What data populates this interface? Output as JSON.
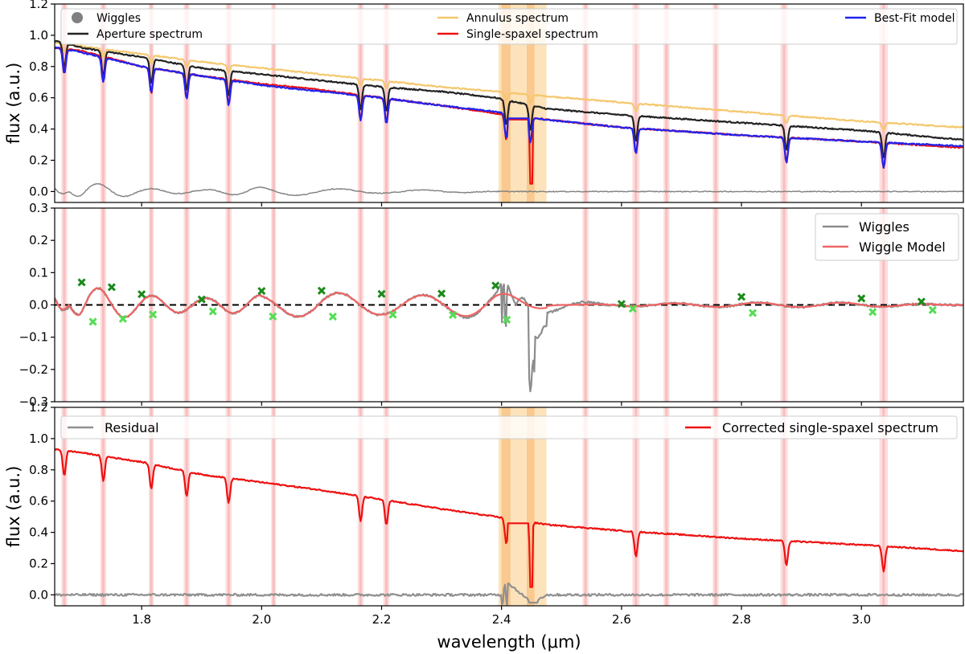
{
  "chart_data": {
    "type": "line",
    "shared_x": {
      "label": "wavelength (μm)",
      "xlim": [
        1.655,
        3.17
      ],
      "ticks": [
        1.8,
        2.0,
        2.2,
        2.4,
        2.6,
        2.8,
        3.0
      ],
      "tick_labels": [
        "1.8",
        "2.0",
        "2.2",
        "2.4",
        "2.6",
        "2.8",
        "3.0"
      ]
    },
    "masked_regions": [
      [
        1.666,
        1.676
      ],
      [
        1.731,
        1.741
      ],
      [
        1.812,
        1.82
      ],
      [
        1.87,
        1.88
      ],
      [
        1.94,
        1.95
      ],
      [
        2.016,
        2.024
      ],
      [
        2.16,
        2.17
      ],
      [
        2.203,
        2.213
      ],
      [
        2.535,
        2.545
      ],
      [
        2.618,
        2.63
      ],
      [
        2.67,
        2.68
      ],
      [
        2.752,
        2.762
      ],
      [
        2.865,
        2.877
      ],
      [
        3.03,
        3.044
      ]
    ],
    "gap_region": [
      2.395,
      2.475
    ],
    "absorption_lines": [
      1.671,
      1.736,
      1.816,
      1.875,
      1.945,
      2.165,
      2.208,
      2.408,
      2.448,
      2.624,
      2.875,
      3.037
    ],
    "panels": [
      {
        "id": "top",
        "ylabel": "flux (a.u.)",
        "ylim": [
          -0.07,
          1.2
        ],
        "yticks": [
          0.0,
          0.2,
          0.4,
          0.6,
          0.8,
          1.0,
          1.2
        ],
        "ytick_labels": [
          "0.0",
          "0.2",
          "0.4",
          "0.6",
          "0.8",
          "1.0",
          "1.2"
        ],
        "legend": [
          {
            "label": "Wiggles",
            "color": "#808080",
            "style": "marker"
          },
          {
            "label": "Aperture spectrum",
            "color": "#222222",
            "style": "line"
          },
          {
            "label": "Annulus spectrum",
            "color": "#f5c86e",
            "style": "line"
          },
          {
            "label": "Single-spaxel spectrum",
            "color": "#ee1111",
            "style": "line"
          },
          {
            "label": "Best-Fit model",
            "color": "#2222ee",
            "style": "line"
          }
        ],
        "series": [
          {
            "name": "Annulus spectrum",
            "color": "#f5c86e",
            "x": [
              1.66,
              1.7,
              1.8,
              1.9,
              2.0,
              2.1,
              2.2,
              2.3,
              2.39,
              2.475,
              2.6,
              2.8,
              3.0,
              3.17
            ],
            "y": [
              0.95,
              0.93,
              0.88,
              0.83,
              0.79,
              0.75,
              0.71,
              0.67,
              0.64,
              0.61,
              0.57,
              0.51,
              0.45,
              0.41
            ]
          },
          {
            "name": "Aperture spectrum",
            "color": "#222222",
            "x": [
              1.66,
              1.7,
              1.8,
              1.9,
              2.0,
              2.1,
              2.2,
              2.3,
              2.39,
              2.475,
              2.6,
              2.8,
              3.0,
              3.17
            ],
            "y": [
              0.96,
              0.92,
              0.86,
              0.79,
              0.75,
              0.71,
              0.67,
              0.64,
              0.6,
              0.53,
              0.49,
              0.44,
              0.39,
              0.33
            ]
          },
          {
            "name": "Single-spaxel spectrum",
            "color": "#ee1111",
            "x": [
              1.66,
              1.7,
              1.8,
              1.9,
              2.0,
              2.1,
              2.2,
              2.3,
              2.39,
              2.475,
              2.6,
              2.8,
              3.0,
              3.17
            ],
            "y": [
              0.92,
              0.9,
              0.8,
              0.74,
              0.69,
              0.65,
              0.6,
              0.55,
              0.5,
              0.46,
              0.41,
              0.36,
              0.32,
              0.28
            ]
          },
          {
            "name": "Best-Fit model",
            "color": "#2222ee",
            "x": [
              1.66,
              1.7,
              1.8,
              1.9,
              2.0,
              2.1,
              2.2,
              2.3,
              2.39,
              2.475,
              2.6,
              2.8,
              3.0,
              3.17
            ],
            "y": [
              0.92,
              0.89,
              0.8,
              0.74,
              0.68,
              0.64,
              0.6,
              0.55,
              0.51,
              0.46,
              0.41,
              0.36,
              0.32,
              0.29
            ]
          },
          {
            "name": "Wiggles",
            "color": "#808080",
            "x": [
              1.66,
              1.7,
              1.75,
              1.8,
              1.9,
              2.0,
              2.1,
              2.2,
              2.3,
              2.4,
              2.5,
              2.7,
              2.9,
              3.1,
              3.17
            ],
            "y": [
              -0.05,
              0.06,
              0.04,
              0.02,
              0.01,
              0.03,
              0.02,
              0.01,
              0.01,
              0.0,
              0.0,
              0.0,
              0.0,
              0.0,
              0.0
            ]
          }
        ]
      },
      {
        "id": "middle",
        "ylabel": "",
        "ylim": [
          -0.3,
          0.3
        ],
        "yticks": [
          -0.3,
          -0.2,
          -0.1,
          0.0,
          0.1,
          0.2,
          0.3
        ],
        "ytick_labels": [
          "−0.3",
          "−0.2",
          "−0.1",
          "0.0",
          "0.1",
          "0.2",
          "0.3"
        ],
        "zero_line": 0.0,
        "legend": [
          {
            "label": "Wiggles",
            "color": "#8c8c8c",
            "style": "line"
          },
          {
            "label": "Wiggle Model",
            "color": "#ef6464",
            "style": "line"
          }
        ],
        "series": [
          {
            "name": "Wiggles",
            "color": "#8c8c8c",
            "x": [
              1.66,
              1.7,
              1.8,
              1.9,
              2.0,
              2.1,
              2.2,
              2.3,
              2.39,
              2.405,
              2.44,
              2.45,
              2.47,
              2.6,
              2.8,
              3.0,
              3.17
            ],
            "y": [
              -0.06,
              0.06,
              0.03,
              0.02,
              0.03,
              0.04,
              0.03,
              0.03,
              0.05,
              0.09,
              -0.08,
              -0.23,
              -0.07,
              0.01,
              0.02,
              0.02,
              0.0
            ]
          },
          {
            "name": "Wiggle Model",
            "color": "#ef6464",
            "x": [
              1.66,
              1.7,
              1.8,
              1.9,
              2.0,
              2.1,
              2.2,
              2.3,
              2.39,
              2.5,
              2.6,
              2.8,
              3.0,
              3.17
            ],
            "y": [
              -0.05,
              0.06,
              0.03,
              0.02,
              0.03,
              0.04,
              0.03,
              0.03,
              0.04,
              0.0,
              0.01,
              0.02,
              0.02,
              0.0
            ]
          },
          {
            "name": "Wiggle extrema (green)",
            "color": "#22aa22",
            "x": [
              1.7,
              1.75,
              1.8,
              1.9,
              2.0,
              2.1,
              2.2,
              2.3,
              2.39,
              2.6,
              2.8,
              3.0,
              3.1
            ],
            "y": [
              0.07,
              0.055,
              0.033,
              0.017,
              0.043,
              0.044,
              0.034,
              0.035,
              0.06,
              0.003,
              0.025,
              0.02,
              0.01
            ]
          }
        ]
      },
      {
        "id": "bottom",
        "ylabel": "flux (a.u.)",
        "ylim": [
          -0.07,
          1.2
        ],
        "yticks": [
          0.0,
          0.2,
          0.4,
          0.6,
          0.8,
          1.0,
          1.2
        ],
        "ytick_labels": [
          "0.0",
          "0.2",
          "0.4",
          "0.6",
          "0.8",
          "1.0",
          "1.2"
        ],
        "legend": [
          {
            "label": "Residual",
            "color": "#909090",
            "style": "line"
          },
          {
            "label": "Corrected single-spaxel spectrum",
            "color": "#ee1111",
            "style": "line"
          }
        ],
        "series": [
          {
            "name": "Corrected single-spaxel spectrum",
            "color": "#ee1111",
            "x": [
              1.66,
              1.7,
              1.8,
              1.9,
              2.0,
              2.1,
              2.2,
              2.3,
              2.39,
              2.475,
              2.6,
              2.8,
              3.0,
              3.17
            ],
            "y": [
              0.93,
              0.91,
              0.85,
              0.77,
              0.72,
              0.67,
              0.61,
              0.55,
              0.5,
              0.45,
              0.41,
              0.36,
              0.32,
              0.28
            ]
          },
          {
            "name": "Residual",
            "color": "#909090",
            "x": [
              1.66,
              1.8,
              2.0,
              2.2,
              2.4,
              2.41,
              2.45,
              2.475,
              2.6,
              2.8,
              3.0,
              3.17
            ],
            "y": [
              0.0,
              0.0,
              0.0,
              0.0,
              0.0,
              0.08,
              -0.05,
              0.0,
              0.0,
              0.0,
              0.0,
              0.0
            ]
          }
        ]
      }
    ]
  }
}
